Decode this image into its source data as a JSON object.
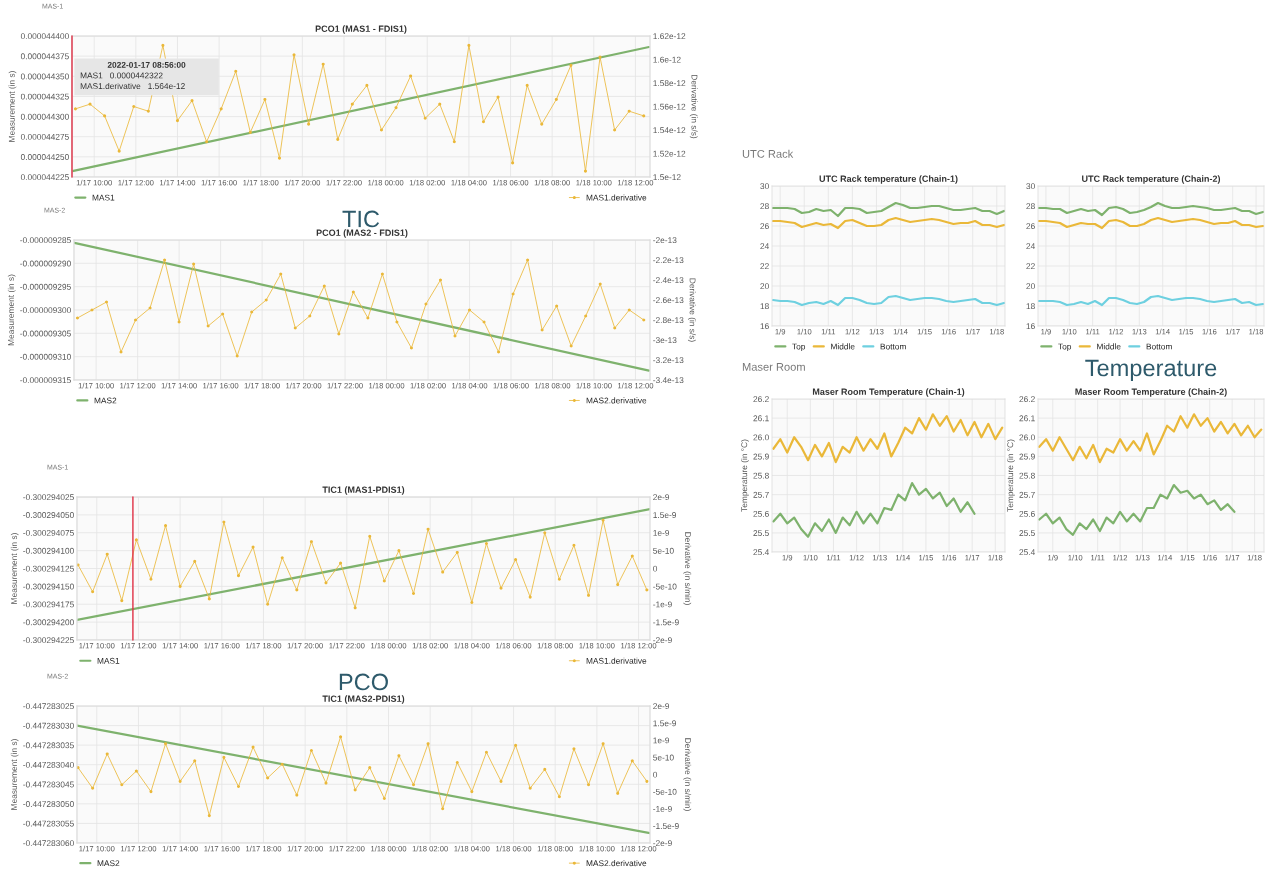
{
  "chart_data": [
    {
      "type": "line",
      "subtitle": "MAS-1",
      "title": "PCO1 (MAS1 - FDIS1)",
      "ylabel": "Measurement (in s)",
      "y2label": "Derivative (in s/s)",
      "annotations": [
        "2022-01-17 08:56:00",
        "MAS1   0.0000442322",
        "MAS1.derivative   1.564e-12",
        "TIC"
      ],
      "grid": true,
      "legend": "bottom",
      "xlim": [
        "2022-01-17T08:56",
        "2022-01-18T12:42"
      ],
      "xticks": [
        {
          "value": "2022-01-17T10:00",
          "label": "1/17 10:00"
        },
        {
          "value": "2022-01-17T12:00",
          "label": "1/17 12:00"
        },
        {
          "value": "2022-01-17T14:00",
          "label": "1/17 14:00"
        },
        {
          "value": "2022-01-17T16:00",
          "label": "1/17 16:00"
        },
        {
          "value": "2022-01-17T18:00",
          "label": "1/17 18:00"
        },
        {
          "value": "2022-01-17T20:00",
          "label": "1/17 20:00"
        },
        {
          "value": "2022-01-17T22:00",
          "label": "1/17 22:00"
        },
        {
          "value": "2022-01-18T00:00",
          "label": "1/18 00:00"
        },
        {
          "value": "2022-01-18T02:00",
          "label": "1/18 02:00"
        },
        {
          "value": "2022-01-18T04:00",
          "label": "1/18 04:00"
        },
        {
          "value": "2022-01-18T06:00",
          "label": "1/18 06:00"
        },
        {
          "value": "2022-01-18T08:00",
          "label": "1/18 08:00"
        },
        {
          "value": "2022-01-18T10:00",
          "label": "1/18 10:00"
        },
        {
          "value": "2022-01-18T12:00",
          "label": "1/18 12:00"
        }
      ],
      "ylim": [
        4.4225e-05,
        4.44e-05
      ],
      "yticks": [
        {
          "value": 4.4225e-05,
          "label": "0.000044225"
        },
        {
          "value": 4.425e-05,
          "label": "0.000044250"
        },
        {
          "value": 4.4275e-05,
          "label": "0.000044275"
        },
        {
          "value": 4.43e-05,
          "label": "0.000044300"
        },
        {
          "value": 4.4325e-05,
          "label": "0.000044325"
        },
        {
          "value": 4.435e-05,
          "label": "0.000044350"
        },
        {
          "value": 4.4375e-05,
          "label": "0.000044375"
        },
        {
          "value": 4.44e-05,
          "label": "0.000044400"
        }
      ],
      "y2lim": [
        1.5e-12,
        1.62e-12
      ],
      "y2ticks": [
        1.5e-12,
        1.52e-12,
        1.54e-12,
        1.56e-12,
        1.58e-12,
        1.6e-12,
        1.62e-12
      ],
      "ref_lines": [
        {
          "axis": "x",
          "value": "2022-01-17T08:56",
          "color": "#e02f44"
        }
      ],
      "x": [
        "2022-01-17T09:06",
        "2022-01-17T09:48",
        "2022-01-17T10:30",
        "2022-01-17T11:12",
        "2022-01-17T11:54",
        "2022-01-17T12:36",
        "2022-01-17T13:18",
        "2022-01-17T14:00",
        "2022-01-17T14:42",
        "2022-01-17T15:24",
        "2022-01-17T16:06",
        "2022-01-17T16:48",
        "2022-01-17T17:30",
        "2022-01-17T18:12",
        "2022-01-17T18:54",
        "2022-01-17T19:36",
        "2022-01-17T20:18",
        "2022-01-17T21:00",
        "2022-01-17T21:42",
        "2022-01-17T22:24",
        "2022-01-17T23:06",
        "2022-01-17T23:48",
        "2022-01-18T00:30",
        "2022-01-18T01:12",
        "2022-01-18T01:54",
        "2022-01-18T02:36",
        "2022-01-18T03:18",
        "2022-01-18T04:00",
        "2022-01-18T04:42",
        "2022-01-18T05:24",
        "2022-01-18T06:06",
        "2022-01-18T06:48",
        "2022-01-18T07:30",
        "2022-01-18T08:12",
        "2022-01-18T08:54",
        "2022-01-18T09:36",
        "2022-01-18T10:18",
        "2022-01-18T11:00",
        "2022-01-18T11:42",
        "2022-01-18T12:24"
      ],
      "series": [
        {
          "name": "MAS1",
          "color": "#7eb26d",
          "x": [
            "2022-01-17T08:57",
            "2022-01-18T12:39"
          ],
          "values": [
            4.42322e-05,
            4.43863e-05
          ]
        },
        {
          "name": "MAS1.derivative",
          "color": "#eab839",
          "axis": "y2",
          "marker": "circle",
          "values": [
            1.558e-12,
            1.562e-12,
            1.552e-12,
            1.522e-12,
            1.56e-12,
            1.556e-12,
            1.612e-12,
            1.548e-12,
            1.565e-12,
            1.53e-12,
            1.558e-12,
            1.59e-12,
            1.538e-12,
            1.566e-12,
            1.516e-12,
            1.604e-12,
            1.545e-12,
            1.596e-12,
            1.532e-12,
            1.562e-12,
            1.578e-12,
            1.54e-12,
            1.559e-12,
            1.586e-12,
            1.55e-12,
            1.562e-12,
            1.53e-12,
            1.612e-12,
            1.547e-12,
            1.568e-12,
            1.512e-12,
            1.578e-12,
            1.545e-12,
            1.566e-12,
            1.595e-12,
            1.505e-12,
            1.602e-12,
            1.54e-12,
            1.556e-12,
            1.552e-12
          ]
        }
      ]
    },
    {
      "type": "line",
      "subtitle": "MAS-2",
      "title": "PCO1 (MAS2 - FDIS1)",
      "ylabel": "Measurement (in s)",
      "y2label": "Derivative (in s/s)",
      "grid": true,
      "legend": "bottom",
      "xlim": [
        "2022-01-17T08:56",
        "2022-01-18T12:42"
      ],
      "xticks": [
        {
          "value": "2022-01-17T10:00",
          "label": "1/17 10:00"
        },
        {
          "value": "2022-01-17T12:00",
          "label": "1/17 12:00"
        },
        {
          "value": "2022-01-17T14:00",
          "label": "1/17 14:00"
        },
        {
          "value": "2022-01-17T16:00",
          "label": "1/17 16:00"
        },
        {
          "value": "2022-01-17T18:00",
          "label": "1/17 18:00"
        },
        {
          "value": "2022-01-17T20:00",
          "label": "1/17 20:00"
        },
        {
          "value": "2022-01-17T22:00",
          "label": "1/17 22:00"
        },
        {
          "value": "2022-01-18T00:00",
          "label": "1/18 00:00"
        },
        {
          "value": "2022-01-18T02:00",
          "label": "1/18 02:00"
        },
        {
          "value": "2022-01-18T04:00",
          "label": "1/18 04:00"
        },
        {
          "value": "2022-01-18T06:00",
          "label": "1/18 06:00"
        },
        {
          "value": "2022-01-18T08:00",
          "label": "1/18 08:00"
        },
        {
          "value": "2022-01-18T10:00",
          "label": "1/18 10:00"
        },
        {
          "value": "2022-01-18T12:00",
          "label": "1/18 12:00"
        }
      ],
      "ylim": [
        -9.315e-06,
        -9.285e-06
      ],
      "yticks": [
        {
          "value": -9.315e-06,
          "label": "-0.000009315"
        },
        {
          "value": -9.31e-06,
          "label": "-0.000009310"
        },
        {
          "value": -9.305e-06,
          "label": "-0.000009305"
        },
        {
          "value": -9.3e-06,
          "label": "-0.000009300"
        },
        {
          "value": -9.295e-06,
          "label": "-0.000009295"
        },
        {
          "value": -9.29e-06,
          "label": "-0.000009290"
        },
        {
          "value": -9.285e-06,
          "label": "-0.000009285"
        }
      ],
      "y2lim": [
        -3.4e-13,
        -2e-13
      ],
      "y2ticks": [
        -3.4e-13,
        -3.2e-13,
        -3e-13,
        -2.8e-13,
        -2.6e-13,
        -2.4e-13,
        -2.2e-13,
        -2e-13
      ],
      "x": [
        "2022-01-17T09:06",
        "2022-01-17T09:48",
        "2022-01-17T10:30",
        "2022-01-17T11:12",
        "2022-01-17T11:54",
        "2022-01-17T12:36",
        "2022-01-17T13:18",
        "2022-01-17T14:00",
        "2022-01-17T14:42",
        "2022-01-17T15:24",
        "2022-01-17T16:06",
        "2022-01-17T16:48",
        "2022-01-17T17:30",
        "2022-01-17T18:12",
        "2022-01-17T18:54",
        "2022-01-17T19:36",
        "2022-01-17T20:18",
        "2022-01-17T21:00",
        "2022-01-17T21:42",
        "2022-01-17T22:24",
        "2022-01-17T23:06",
        "2022-01-17T23:48",
        "2022-01-18T00:30",
        "2022-01-18T01:12",
        "2022-01-18T01:54",
        "2022-01-18T02:36",
        "2022-01-18T03:18",
        "2022-01-18T04:00",
        "2022-01-18T04:42",
        "2022-01-18T05:24",
        "2022-01-18T06:06",
        "2022-01-18T06:48",
        "2022-01-18T07:30",
        "2022-01-18T08:12",
        "2022-01-18T08:54",
        "2022-01-18T09:36",
        "2022-01-18T10:18",
        "2022-01-18T11:00",
        "2022-01-18T11:42",
        "2022-01-18T12:24"
      ],
      "series": [
        {
          "name": "MAS2",
          "color": "#7eb26d",
          "x": [
            "2022-01-17T08:57",
            "2022-01-18T12:39"
          ],
          "values": [
            -9.2856e-06,
            -9.313e-06
          ]
        },
        {
          "name": "MAS2.derivative",
          "color": "#eab839",
          "axis": "y2",
          "marker": "circle",
          "values": [
            -2.78e-13,
            -2.7e-13,
            -2.62e-13,
            -3.12e-13,
            -2.8e-13,
            -2.68e-13,
            -2.2e-13,
            -2.82e-13,
            -2.24e-13,
            -2.86e-13,
            -2.74e-13,
            -3.16e-13,
            -2.72e-13,
            -2.6e-13,
            -2.34e-13,
            -2.88e-13,
            -2.76e-13,
            -2.46e-13,
            -2.94e-13,
            -2.52e-13,
            -2.78e-13,
            -2.34e-13,
            -2.82e-13,
            -3.08e-13,
            -2.64e-13,
            -2.4e-13,
            -2.96e-13,
            -2.7e-13,
            -2.82e-13,
            -3.12e-13,
            -2.54e-13,
            -2.2e-13,
            -2.9e-13,
            -2.66e-13,
            -3.06e-13,
            -2.76e-13,
            -2.44e-13,
            -2.88e-13,
            -2.7e-13,
            -2.8e-13
          ]
        }
      ]
    },
    {
      "type": "line",
      "subtitle": "MAS-1",
      "title": "TIC1 (MAS1-PDIS1)",
      "ylabel": "Measurement (in s)",
      "y2label": "Derivative (in s/min)",
      "annotations": [
        "PCO"
      ],
      "grid": true,
      "legend": "bottom",
      "xlim": [
        "2022-01-17T09:03",
        "2022-01-18T12:33"
      ],
      "xticks": [
        {
          "value": "2022-01-17T10:00",
          "label": "1/17 10:00"
        },
        {
          "value": "2022-01-17T12:00",
          "label": "1/17 12:00"
        },
        {
          "value": "2022-01-17T14:00",
          "label": "1/17 14:00"
        },
        {
          "value": "2022-01-17T16:00",
          "label": "1/17 16:00"
        },
        {
          "value": "2022-01-17T18:00",
          "label": "1/17 18:00"
        },
        {
          "value": "2022-01-17T20:00",
          "label": "1/17 20:00"
        },
        {
          "value": "2022-01-17T22:00",
          "label": "1/17 22:00"
        },
        {
          "value": "2022-01-18T00:00",
          "label": "1/18 00:00"
        },
        {
          "value": "2022-01-18T02:00",
          "label": "1/18 02:00"
        },
        {
          "value": "2022-01-18T04:00",
          "label": "1/18 04:00"
        },
        {
          "value": "2022-01-18T06:00",
          "label": "1/18 06:00"
        },
        {
          "value": "2022-01-18T08:00",
          "label": "1/18 08:00"
        },
        {
          "value": "2022-01-18T10:00",
          "label": "1/18 10:00"
        },
        {
          "value": "2022-01-18T12:00",
          "label": "1/18 12:00"
        }
      ],
      "ylim": [
        -0.300294225,
        -0.300294025
      ],
      "yticks": [
        {
          "value": -0.300294225,
          "label": "-0.300294225"
        },
        {
          "value": -0.3002942,
          "label": "-0.300294200"
        },
        {
          "value": -0.300294175,
          "label": "-0.300294175"
        },
        {
          "value": -0.30029415,
          "label": "-0.300294150"
        },
        {
          "value": -0.300294125,
          "label": "-0.300294125"
        },
        {
          "value": -0.3002941,
          "label": "-0.300294100"
        },
        {
          "value": -0.300294075,
          "label": "-0.300294075"
        },
        {
          "value": -0.30029405,
          "label": "-0.300294050"
        },
        {
          "value": -0.300294025,
          "label": "-0.300294025"
        }
      ],
      "y2lim": [
        -2e-09,
        2e-09
      ],
      "y2ticks": [
        {
          "value": -2e-09,
          "label": "-2e-9"
        },
        {
          "value": -1.5e-09,
          "label": "-1.5e-9"
        },
        {
          "value": -1e-09,
          "label": "-1e-9"
        },
        {
          "value": -5e-10,
          "label": "-5e-10"
        },
        0,
        {
          "value": 5e-10,
          "label": "5e-10"
        },
        {
          "value": 1e-09,
          "label": "1e-9"
        },
        {
          "value": 1.5e-09,
          "label": "1.5e-9"
        },
        {
          "value": 2e-09,
          "label": "2e-9"
        }
      ],
      "ref_lines": [
        {
          "axis": "x",
          "value": "2022-01-17T11:44",
          "color": "#e02f44"
        }
      ],
      "x": [
        "2022-01-17T09:06",
        "2022-01-17T09:48",
        "2022-01-17T10:30",
        "2022-01-17T11:12",
        "2022-01-17T11:54",
        "2022-01-17T12:36",
        "2022-01-17T13:18",
        "2022-01-17T14:00",
        "2022-01-17T14:42",
        "2022-01-17T15:24",
        "2022-01-17T16:06",
        "2022-01-17T16:48",
        "2022-01-17T17:30",
        "2022-01-17T18:12",
        "2022-01-17T18:54",
        "2022-01-17T19:36",
        "2022-01-17T20:18",
        "2022-01-17T21:00",
        "2022-01-17T21:42",
        "2022-01-17T22:24",
        "2022-01-17T23:06",
        "2022-01-17T23:48",
        "2022-01-18T00:30",
        "2022-01-18T01:12",
        "2022-01-18T01:54",
        "2022-01-18T02:36",
        "2022-01-18T03:18",
        "2022-01-18T04:00",
        "2022-01-18T04:42",
        "2022-01-18T05:24",
        "2022-01-18T06:06",
        "2022-01-18T06:48",
        "2022-01-18T07:30",
        "2022-01-18T08:12",
        "2022-01-18T08:54",
        "2022-01-18T09:36",
        "2022-01-18T10:18",
        "2022-01-18T11:00",
        "2022-01-18T11:42",
        "2022-01-18T12:24"
      ],
      "series": [
        {
          "name": "MAS1",
          "color": "#7eb26d",
          "x": [
            "2022-01-17T09:03",
            "2022-01-18T12:33"
          ],
          "values": [
            -0.300294197,
            -0.300294042
          ]
        },
        {
          "name": "MAS1.derivative",
          "color": "#eab839",
          "axis": "y2",
          "marker": "circle",
          "values": [
            1e-10,
            -6.5e-10,
            4e-10,
            -9e-10,
            8e-10,
            -3e-10,
            1.2e-09,
            -5e-10,
            2e-10,
            -8.5e-10,
            1.3e-09,
            -2e-10,
            6e-10,
            -1e-09,
            3e-10,
            -6e-10,
            7.5e-10,
            -4e-10,
            1.5e-10,
            -1.1e-09,
            9e-10,
            -3.5e-10,
            5e-10,
            -7e-10,
            1.1e-09,
            -1e-10,
            4.5e-10,
            -9.5e-10,
            7e-10,
            -5.5e-10,
            2.5e-10,
            -8e-10,
            1e-09,
            -3e-10,
            6.5e-10,
            -7.5e-10,
            1.35e-09,
            -4.5e-10,
            3.5e-10,
            -6e-10
          ]
        }
      ]
    },
    {
      "type": "line",
      "subtitle": "MAS-2",
      "title": "TIC1 (MAS2-PDIS1)",
      "ylabel": "Measurement (in s)",
      "y2label": "Derivative (in s/min)",
      "grid": true,
      "legend": "bottom",
      "xlim": [
        "2022-01-17T09:03",
        "2022-01-18T12:33"
      ],
      "xticks": [
        {
          "value": "2022-01-17T10:00",
          "label": "1/17 10:00"
        },
        {
          "value": "2022-01-17T12:00",
          "label": "1/17 12:00"
        },
        {
          "value": "2022-01-17T14:00",
          "label": "1/17 14:00"
        },
        {
          "value": "2022-01-17T16:00",
          "label": "1/17 16:00"
        },
        {
          "value": "2022-01-17T18:00",
          "label": "1/17 18:00"
        },
        {
          "value": "2022-01-17T20:00",
          "label": "1/17 20:00"
        },
        {
          "value": "2022-01-17T22:00",
          "label": "1/17 22:00"
        },
        {
          "value": "2022-01-18T00:00",
          "label": "1/18 00:00"
        },
        {
          "value": "2022-01-18T02:00",
          "label": "1/18 02:00"
        },
        {
          "value": "2022-01-18T04:00",
          "label": "1/18 04:00"
        },
        {
          "value": "2022-01-18T06:00",
          "label": "1/18 06:00"
        },
        {
          "value": "2022-01-18T08:00",
          "label": "1/18 08:00"
        },
        {
          "value": "2022-01-18T10:00",
          "label": "1/18 10:00"
        },
        {
          "value": "2022-01-18T12:00",
          "label": "1/18 12:00"
        }
      ],
      "ylim": [
        -0.44728306,
        -0.447283025
      ],
      "yticks": [
        {
          "value": -0.44728306,
          "label": "-0.447283060"
        },
        {
          "value": -0.447283055,
          "label": "-0.447283055"
        },
        {
          "value": -0.44728305,
          "label": "-0.447283050"
        },
        {
          "value": -0.447283045,
          "label": "-0.447283045"
        },
        {
          "value": -0.44728304,
          "label": "-0.447283040"
        },
        {
          "value": -0.447283035,
          "label": "-0.447283035"
        },
        {
          "value": -0.44728303,
          "label": "-0.447283030"
        },
        {
          "value": -0.447283025,
          "label": "-0.447283025"
        }
      ],
      "y2lim": [
        -2e-09,
        2e-09
      ],
      "y2ticks": [
        {
          "value": -2e-09,
          "label": "-2e-9"
        },
        {
          "value": -1.5e-09,
          "label": "-1.5e-9"
        },
        {
          "value": -1e-09,
          "label": "-1e-9"
        },
        {
          "value": -5e-10,
          "label": "-5e-10"
        },
        0,
        {
          "value": 5e-10,
          "label": "5e-10"
        },
        {
          "value": 1e-09,
          "label": "1e-9"
        },
        {
          "value": 1.5e-09,
          "label": "1.5e-9"
        },
        {
          "value": 2e-09,
          "label": "2e-9"
        }
      ],
      "x": [
        "2022-01-17T09:06",
        "2022-01-17T09:48",
        "2022-01-17T10:30",
        "2022-01-17T11:12",
        "2022-01-17T11:54",
        "2022-01-17T12:36",
        "2022-01-17T13:18",
        "2022-01-17T14:00",
        "2022-01-17T14:42",
        "2022-01-17T15:24",
        "2022-01-17T16:06",
        "2022-01-17T16:48",
        "2022-01-17T17:30",
        "2022-01-17T18:12",
        "2022-01-17T18:54",
        "2022-01-17T19:36",
        "2022-01-17T20:18",
        "2022-01-17T21:00",
        "2022-01-17T21:42",
        "2022-01-17T22:24",
        "2022-01-17T23:06",
        "2022-01-17T23:48",
        "2022-01-18T00:30",
        "2022-01-18T01:12",
        "2022-01-18T01:54",
        "2022-01-18T02:36",
        "2022-01-18T03:18",
        "2022-01-18T04:00",
        "2022-01-18T04:42",
        "2022-01-18T05:24",
        "2022-01-18T06:06",
        "2022-01-18T06:48",
        "2022-01-18T07:30",
        "2022-01-18T08:12",
        "2022-01-18T08:54",
        "2022-01-18T09:36",
        "2022-01-18T10:18",
        "2022-01-18T11:00",
        "2022-01-18T11:42",
        "2022-01-18T12:24"
      ],
      "series": [
        {
          "name": "MAS2",
          "color": "#7eb26d",
          "x": [
            "2022-01-17T09:03",
            "2022-01-18T12:33"
          ],
          "values": [
            -0.44728303,
            -0.4472830575
          ]
        },
        {
          "name": "MAS2.derivative",
          "color": "#eab839",
          "axis": "y2",
          "marker": "circle",
          "values": [
            2e-10,
            -4e-10,
            6e-10,
            -3e-10,
            1e-10,
            -5e-10,
            9e-10,
            -2e-10,
            4e-10,
            -1.2e-09,
            5e-10,
            -3.5e-10,
            8e-10,
            -1e-10,
            3e-10,
            -6e-10,
            7e-10,
            -2.5e-10,
            1.1e-09,
            -4.5e-10,
            2e-10,
            -7e-10,
            5.5e-10,
            -3e-10,
            9e-10,
            -1e-09,
            3.5e-10,
            -5e-10,
            6.5e-10,
            -2e-10,
            8.5e-10,
            -4e-10,
            1.5e-10,
            -6.5e-10,
            7.5e-10,
            -3e-10,
            9e-10,
            -5.5e-10,
            4e-10,
            -2e-10
          ]
        }
      ]
    },
    {
      "type": "line",
      "subtitle": "UTC Rack",
      "title": "UTC Rack temperature (Chain-1)",
      "grid": true,
      "legend": "bottom left",
      "xlim": [
        "2022-01-08T15:50",
        "2022-01-18T08:10"
      ],
      "xticks": [
        {
          "value": "2022-01-09",
          "label": "1/9"
        },
        {
          "value": "2022-01-10",
          "label": "1/10"
        },
        {
          "value": "2022-01-11",
          "label": "1/11"
        },
        {
          "value": "2022-01-12",
          "label": "1/12"
        },
        {
          "value": "2022-01-13",
          "label": "1/13"
        },
        {
          "value": "2022-01-14",
          "label": "1/14"
        },
        {
          "value": "2022-01-15",
          "label": "1/15"
        },
        {
          "value": "2022-01-16",
          "label": "1/16"
        },
        {
          "value": "2022-01-17",
          "label": "1/17"
        },
        {
          "value": "2022-01-18",
          "label": "1/18"
        }
      ],
      "ylim": [
        16,
        30
      ],
      "yticks": [
        16,
        18,
        20,
        22,
        24,
        26,
        28,
        30
      ],
      "x": [
        "2022-01-08T16:48",
        "2022-01-09T00:00",
        "2022-01-09T07:12",
        "2022-01-09T14:24",
        "2022-01-09T21:36",
        "2022-01-10T04:48",
        "2022-01-10T12:00",
        "2022-01-10T19:12",
        "2022-01-11T02:24",
        "2022-01-11T09:36",
        "2022-01-11T16:48",
        "2022-01-12T00:00",
        "2022-01-12T07:12",
        "2022-01-12T14:24",
        "2022-01-12T21:36",
        "2022-01-13T04:48",
        "2022-01-13T12:00",
        "2022-01-13T19:12",
        "2022-01-14T02:24",
        "2022-01-14T09:36",
        "2022-01-14T16:48",
        "2022-01-15T00:00",
        "2022-01-15T07:12",
        "2022-01-15T14:24",
        "2022-01-15T21:36",
        "2022-01-16T04:48",
        "2022-01-16T12:00",
        "2022-01-16T19:12",
        "2022-01-17T02:24",
        "2022-01-17T09:36",
        "2022-01-17T16:48",
        "2022-01-18T00:00",
        "2022-01-18T07:12"
      ],
      "series": [
        {
          "name": "Top",
          "color": "#7eb26d",
          "values": [
            27.8,
            27.8,
            27.8,
            27.7,
            27.3,
            27.4,
            27.7,
            27.5,
            27.6,
            27.0,
            27.8,
            27.8,
            27.7,
            27.3,
            27.4,
            27.5,
            27.9,
            28.3,
            28.1,
            27.8,
            27.8,
            27.9,
            28.0,
            28.0,
            27.8,
            27.6,
            27.6,
            27.7,
            27.8,
            27.5,
            27.5,
            27.2,
            27.5
          ]
        },
        {
          "name": "Middle",
          "color": "#eab839",
          "values": [
            26.5,
            26.5,
            26.4,
            26.3,
            25.9,
            26.1,
            26.3,
            26.1,
            26.2,
            25.8,
            26.5,
            26.6,
            26.3,
            26.0,
            26.0,
            26.1,
            26.6,
            26.8,
            26.6,
            26.4,
            26.5,
            26.6,
            26.7,
            26.6,
            26.4,
            26.2,
            26.3,
            26.3,
            26.5,
            26.1,
            26.1,
            25.9,
            26.1
          ]
        },
        {
          "name": "Bottom",
          "color": "#6ed0e0",
          "values": [
            18.6,
            18.5,
            18.5,
            18.4,
            18.1,
            18.3,
            18.4,
            18.2,
            18.5,
            18.1,
            18.8,
            18.8,
            18.6,
            18.3,
            18.2,
            18.3,
            18.9,
            19.0,
            18.8,
            18.6,
            18.7,
            18.8,
            18.8,
            18.7,
            18.5,
            18.4,
            18.5,
            18.6,
            18.7,
            18.3,
            18.3,
            18.1,
            18.3
          ]
        }
      ]
    },
    {
      "type": "line",
      "title": "UTC Rack temperature (Chain-2)",
      "annotations": [
        "Temperature"
      ],
      "grid": true,
      "legend": "bottom left",
      "xlim": [
        "2022-01-08T15:50",
        "2022-01-18T08:10"
      ],
      "xticks": [
        {
          "value": "2022-01-09",
          "label": "1/9"
        },
        {
          "value": "2022-01-10",
          "label": "1/10"
        },
        {
          "value": "2022-01-11",
          "label": "1/11"
        },
        {
          "value": "2022-01-12",
          "label": "1/12"
        },
        {
          "value": "2022-01-13",
          "label": "1/13"
        },
        {
          "value": "2022-01-14",
          "label": "1/14"
        },
        {
          "value": "2022-01-15",
          "label": "1/15"
        },
        {
          "value": "2022-01-16",
          "label": "1/16"
        },
        {
          "value": "2022-01-17",
          "label": "1/17"
        },
        {
          "value": "2022-01-18",
          "label": "1/18"
        }
      ],
      "ylim": [
        16,
        30
      ],
      "yticks": [
        16,
        18,
        20,
        22,
        24,
        26,
        28,
        30
      ],
      "x": [
        "2022-01-08T16:48",
        "2022-01-09T00:00",
        "2022-01-09T07:12",
        "2022-01-09T14:24",
        "2022-01-09T21:36",
        "2022-01-10T04:48",
        "2022-01-10T12:00",
        "2022-01-10T19:12",
        "2022-01-11T02:24",
        "2022-01-11T09:36",
        "2022-01-11T16:48",
        "2022-01-12T00:00",
        "2022-01-12T07:12",
        "2022-01-12T14:24",
        "2022-01-12T21:36",
        "2022-01-13T04:48",
        "2022-01-13T12:00",
        "2022-01-13T19:12",
        "2022-01-14T02:24",
        "2022-01-14T09:36",
        "2022-01-14T16:48",
        "2022-01-15T00:00",
        "2022-01-15T07:12",
        "2022-01-15T14:24",
        "2022-01-15T21:36",
        "2022-01-16T04:48",
        "2022-01-16T12:00",
        "2022-01-16T19:12",
        "2022-01-17T02:24",
        "2022-01-17T09:36",
        "2022-01-17T16:48",
        "2022-01-18T00:00",
        "2022-01-18T07:12"
      ],
      "series": [
        {
          "name": "Top",
          "color": "#7eb26d",
          "values": [
            27.8,
            27.8,
            27.7,
            27.7,
            27.3,
            27.5,
            27.7,
            27.5,
            27.6,
            27.1,
            27.8,
            27.9,
            27.7,
            27.3,
            27.4,
            27.6,
            27.9,
            28.3,
            28.0,
            27.8,
            27.8,
            27.9,
            28.0,
            27.9,
            27.8,
            27.6,
            27.6,
            27.7,
            27.8,
            27.5,
            27.5,
            27.2,
            27.4
          ]
        },
        {
          "name": "Middle",
          "color": "#eab839",
          "values": [
            26.5,
            26.5,
            26.4,
            26.3,
            25.9,
            26.1,
            26.3,
            26.2,
            26.2,
            25.8,
            26.5,
            26.6,
            26.4,
            26.0,
            26.0,
            26.2,
            26.6,
            26.8,
            26.6,
            26.4,
            26.5,
            26.6,
            26.7,
            26.6,
            26.4,
            26.2,
            26.3,
            26.3,
            26.5,
            26.1,
            26.1,
            25.9,
            26.0
          ]
        },
        {
          "name": "Bottom",
          "color": "#6ed0e0",
          "values": [
            18.5,
            18.5,
            18.5,
            18.4,
            18.1,
            18.2,
            18.4,
            18.2,
            18.5,
            18.1,
            18.8,
            18.8,
            18.6,
            18.3,
            18.2,
            18.4,
            18.9,
            19.0,
            18.8,
            18.6,
            18.7,
            18.8,
            18.8,
            18.7,
            18.5,
            18.4,
            18.5,
            18.6,
            18.7,
            18.3,
            18.4,
            18.1,
            18.2
          ]
        }
      ]
    },
    {
      "type": "line",
      "subtitle": "Maser Room",
      "title": "Maser Room Temperature (Chain-1)",
      "ylabel": "Temperature (in °C)",
      "grid": true,
      "xlim": [
        "2022-01-08T08:10",
        "2022-01-18T10:05"
      ],
      "xticks": [
        {
          "value": "2022-01-09",
          "label": "1/9"
        },
        {
          "value": "2022-01-10",
          "label": "1/10"
        },
        {
          "value": "2022-01-11",
          "label": "1/11"
        },
        {
          "value": "2022-01-12",
          "label": "1/12"
        },
        {
          "value": "2022-01-13",
          "label": "1/13"
        },
        {
          "value": "2022-01-14",
          "label": "1/14"
        },
        {
          "value": "2022-01-15",
          "label": "1/15"
        },
        {
          "value": "2022-01-16",
          "label": "1/16"
        },
        {
          "value": "2022-01-17",
          "label": "1/17"
        },
        {
          "value": "2022-01-18",
          "label": "1/18"
        }
      ],
      "ylim": [
        25.4,
        26.2
      ],
      "yticks": [
        25.4,
        25.5,
        25.6,
        25.7,
        25.8,
        25.9,
        {
          "value": 26.0,
          "label": "26.0"
        },
        26.1,
        26.2
      ],
      "x": [
        "2022-01-08T09:36",
        "2022-01-08T16:48",
        "2022-01-09T00:00",
        "2022-01-09T07:12",
        "2022-01-09T14:24",
        "2022-01-09T21:36",
        "2022-01-10T04:48",
        "2022-01-10T12:00",
        "2022-01-10T19:12",
        "2022-01-11T02:24",
        "2022-01-11T09:36",
        "2022-01-11T16:48",
        "2022-01-12T00:00",
        "2022-01-12T07:12",
        "2022-01-12T14:24",
        "2022-01-12T21:36",
        "2022-01-13T04:48",
        "2022-01-13T12:00",
        "2022-01-13T19:12",
        "2022-01-14T02:24",
        "2022-01-14T09:36",
        "2022-01-14T16:48",
        "2022-01-15T00:00",
        "2022-01-15T07:12",
        "2022-01-15T14:24",
        "2022-01-15T21:36",
        "2022-01-16T04:48",
        "2022-01-16T12:00",
        "2022-01-16T19:12",
        "2022-01-17T02:24",
        "2022-01-17T09:36",
        "2022-01-17T16:48",
        "2022-01-18T00:00",
        "2022-01-18T07:12"
      ],
      "series": [
        {
          "color": "#eab839",
          "values": [
            25.94,
            25.99,
            25.92,
            26.0,
            25.95,
            25.88,
            25.96,
            25.9,
            25.97,
            25.87,
            25.95,
            25.92,
            26.0,
            25.93,
            25.99,
            25.94,
            26.02,
            25.9,
            25.97,
            26.05,
            26.02,
            26.1,
            26.04,
            26.12,
            26.06,
            26.11,
            26.03,
            26.09,
            26.01,
            26.08,
            26.0,
            26.07,
            25.99,
            26.05
          ]
        },
        {
          "color": "#7eb26d",
          "values": [
            25.56,
            25.6,
            25.55,
            25.58,
            25.52,
            25.48,
            25.55,
            25.51,
            25.57,
            25.5,
            25.58,
            25.54,
            25.61,
            25.55,
            25.6,
            25.55,
            25.63,
            25.62,
            25.7,
            25.67,
            25.76,
            25.7,
            25.73,
            25.68,
            25.71,
            25.64,
            25.68,
            25.61,
            25.66,
            25.6,
            null,
            null,
            null,
            null
          ]
        }
      ]
    },
    {
      "type": "line",
      "title": "Maser Room Temperature (Chain-2)",
      "ylabel": "Temperature (in °C)",
      "grid": true,
      "xlim": [
        "2022-01-08T08:10",
        "2022-01-18T10:05"
      ],
      "xticks": [
        {
          "value": "2022-01-09",
          "label": "1/9"
        },
        {
          "value": "2022-01-10",
          "label": "1/10"
        },
        {
          "value": "2022-01-11",
          "label": "1/11"
        },
        {
          "value": "2022-01-12",
          "label": "1/12"
        },
        {
          "value": "2022-01-13",
          "label": "1/13"
        },
        {
          "value": "2022-01-14",
          "label": "1/14"
        },
        {
          "value": "2022-01-15",
          "label": "1/15"
        },
        {
          "value": "2022-01-16",
          "label": "1/16"
        },
        {
          "value": "2022-01-17",
          "label": "1/17"
        },
        {
          "value": "2022-01-18",
          "label": "1/18"
        }
      ],
      "ylim": [
        25.4,
        26.2
      ],
      "yticks": [
        25.4,
        25.5,
        25.6,
        25.7,
        25.8,
        25.9,
        {
          "value": 26.0,
          "label": "26.0"
        },
        26.1,
        26.2
      ],
      "x": [
        "2022-01-08T09:36",
        "2022-01-08T16:48",
        "2022-01-09T00:00",
        "2022-01-09T07:12",
        "2022-01-09T14:24",
        "2022-01-09T21:36",
        "2022-01-10T04:48",
        "2022-01-10T12:00",
        "2022-01-10T19:12",
        "2022-01-11T02:24",
        "2022-01-11T09:36",
        "2022-01-11T16:48",
        "2022-01-12T00:00",
        "2022-01-12T07:12",
        "2022-01-12T14:24",
        "2022-01-12T21:36",
        "2022-01-13T04:48",
        "2022-01-13T12:00",
        "2022-01-13T19:12",
        "2022-01-14T02:24",
        "2022-01-14T09:36",
        "2022-01-14T16:48",
        "2022-01-15T00:00",
        "2022-01-15T07:12",
        "2022-01-15T14:24",
        "2022-01-15T21:36",
        "2022-01-16T04:48",
        "2022-01-16T12:00",
        "2022-01-16T19:12",
        "2022-01-17T02:24",
        "2022-01-17T09:36",
        "2022-01-17T16:48",
        "2022-01-18T00:00",
        "2022-01-18T07:12"
      ],
      "series": [
        {
          "color": "#eab839",
          "values": [
            25.95,
            25.99,
            25.93,
            26.0,
            25.94,
            25.88,
            25.95,
            25.89,
            25.96,
            25.87,
            25.94,
            25.92,
            25.99,
            25.93,
            25.98,
            25.93,
            26.02,
            25.91,
            25.98,
            26.06,
            26.03,
            26.11,
            26.05,
            26.12,
            26.06,
            26.1,
            26.03,
            26.08,
            26.02,
            26.07,
            26.01,
            26.06,
            26.0,
            26.04
          ]
        },
        {
          "color": "#7eb26d",
          "values": [
            25.57,
            25.6,
            25.55,
            25.58,
            25.52,
            25.49,
            25.55,
            25.52,
            25.57,
            25.51,
            25.58,
            25.55,
            25.61,
            25.56,
            25.6,
            25.56,
            25.63,
            25.63,
            25.7,
            25.68,
            25.75,
            25.71,
            25.72,
            25.68,
            25.7,
            25.65,
            25.67,
            25.62,
            25.65,
            25.61,
            null,
            null,
            null,
            null
          ]
        }
      ]
    }
  ]
}
